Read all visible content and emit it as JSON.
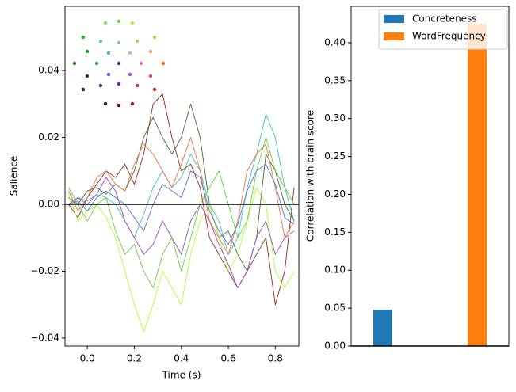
{
  "chart_data": [
    {
      "type": "line",
      "xlabel": "Time (s)",
      "ylabel": "Salience",
      "x": [
        -0.08,
        -0.04,
        0,
        0.04,
        0.08,
        0.12,
        0.16,
        0.2,
        0.24,
        0.28,
        0.32,
        0.36,
        0.4,
        0.44,
        0.48,
        0.52,
        0.56,
        0.6,
        0.64,
        0.68,
        0.72,
        0.76,
        0.8,
        0.84,
        0.88
      ],
      "series": [
        {
          "color": "#8b2a1e",
          "values": [
            0,
            -0.004,
            0.002,
            0.006,
            0.01,
            0.008,
            0.012,
            0.006,
            0.015,
            0.03,
            0.033,
            0.02,
            0.01,
            0.012,
            0.005,
            -0.01,
            -0.015,
            -0.02,
            -0.025,
            -0.02,
            -0.015,
            -0.01,
            -0.03,
            -0.02,
            0.005
          ]
        },
        {
          "color": "#4a6a3a",
          "values": [
            0.002,
            0,
            0.004,
            0.005,
            0.003,
            0.006,
            0.004,
            0.01,
            0.02,
            0.026,
            0.02,
            0.015,
            0.02,
            0.03,
            0.02,
            0,
            -0.01,
            -0.008,
            -0.015,
            -0.02,
            -0.01,
            0.015,
            0.01,
            0,
            -0.005
          ]
        },
        {
          "color": "#40c0b0",
          "values": [
            0,
            0.002,
            0.001,
            0.003,
            0.002,
            0,
            -0.005,
            -0.01,
            -0.003,
            0.005,
            0.01,
            0.005,
            0.008,
            0.015,
            0.01,
            0,
            -0.005,
            -0.015,
            -0.01,
            0.005,
            0.015,
            0.027,
            0.02,
            0.005,
            -0.005
          ]
        },
        {
          "color": "#adff2f",
          "values": [
            0.003,
            -0.005,
            -0.002,
            0,
            -0.004,
            -0.01,
            -0.02,
            -0.03,
            -0.038,
            -0.03,
            -0.02,
            -0.025,
            -0.03,
            -0.015,
            -0.005,
            0,
            -0.01,
            -0.02,
            -0.015,
            -0.005,
            0.005,
            0,
            -0.02,
            -0.025,
            -0.02
          ]
        },
        {
          "color": "#9a40c8",
          "values": [
            0,
            0.002,
            0,
            0.003,
            0.008,
            0.004,
            -0.005,
            -0.01,
            -0.015,
            -0.012,
            -0.005,
            -0.01,
            -0.015,
            -0.005,
            0,
            -0.005,
            -0.012,
            -0.018,
            -0.025,
            -0.02,
            -0.01,
            -0.005,
            -0.015,
            -0.01,
            -0.008
          ]
        },
        {
          "color": "#f07040",
          "values": [
            0.004,
            -0.002,
            0.002,
            0.008,
            0.01,
            0.006,
            0.004,
            0.012,
            0.018,
            0.015,
            0.01,
            0.005,
            0.012,
            0.02,
            0.01,
            -0.005,
            -0.01,
            -0.015,
            -0.005,
            0.01,
            0.015,
            0.018,
            0.005,
            -0.01,
            -0.005
          ]
        },
        {
          "color": "#5070d0",
          "values": [
            0,
            0.001,
            -0.002,
            0.002,
            0.004,
            0.002,
            0,
            -0.004,
            -0.008,
            0,
            0.006,
            0.004,
            0.002,
            0.01,
            0.008,
            -0.002,
            -0.008,
            -0.012,
            -0.006,
            0.004,
            0.01,
            0.012,
            0.006,
            -0.004,
            -0.006
          ]
        },
        {
          "color": "#60d040",
          "values": [
            0.005,
            0,
            -0.005,
            0,
            0.002,
            -0.008,
            -0.015,
            -0.012,
            -0.02,
            -0.025,
            -0.015,
            -0.01,
            -0.02,
            -0.01,
            0,
            0.005,
            0.01,
            0,
            -0.01,
            -0.005,
            0.01,
            0.02,
            0.01,
            0.005,
            0
          ]
        }
      ],
      "reference_line": 0,
      "xlim": [
        -0.095,
        0.9
      ],
      "xticks": [
        {
          "value": 0,
          "label": "0.0"
        },
        0.2,
        0.4,
        0.6,
        0.8
      ],
      "ylim": [
        -0.0424,
        0.0592
      ],
      "yticks": [
        {
          "value": -0.04,
          "label": "−0.04"
        },
        {
          "value": -0.02,
          "label": "−0.02"
        },
        {
          "value": 0,
          "label": "0.00"
        },
        0.02,
        0.04
      ]
    },
    {
      "type": "bar",
      "ylabel": "Correlation with brain score",
      "series": [
        {
          "name": "Concreteness",
          "color": "#1f77b4",
          "values": [
            0.048
          ]
        },
        {
          "name": "WordFrequency",
          "color": "#ff7f0e",
          "values": [
            0.425
          ]
        }
      ],
      "legend": "upper right",
      "ylim": [
        0,
        0.448
      ],
      "yticks": [
        {
          "value": 0,
          "label": "0.00"
        },
        0.05,
        {
          "value": 0.1,
          "label": "0.10"
        },
        0.15,
        {
          "value": 0.2,
          "label": "0.20"
        },
        0.25,
        {
          "value": 0.3,
          "label": "0.30"
        },
        0.35,
        {
          "value": 0.4,
          "label": "0.40"
        }
      ]
    }
  ]
}
